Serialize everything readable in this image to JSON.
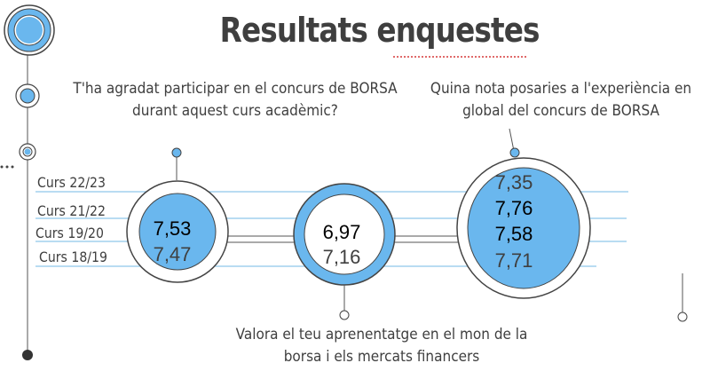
{
  "slide": {
    "title": "Resultats enquestes",
    "questions": {
      "participation": "T'ha agradat participar en el concurs de BORSA durant aquest curs acadèmic?",
      "experience": "Quina nota posaries a l'experiència en global del concurs de BORSA",
      "learning": "Valora el teu aprenentatge en el mon de la borsa i els mercats financers"
    },
    "rows": [
      "Curs 22/23",
      "Curs 21/22",
      "Curs 19/20",
      "Curs 18/19"
    ],
    "participation_values": [
      "7,53",
      "7,47"
    ],
    "learning_values": [
      "6,97",
      "7,16"
    ],
    "experience_values": [
      "7,35",
      "7,76",
      "7,58",
      "7,71"
    ]
  },
  "colors": {
    "accent_blue": "#6ab7ee",
    "line_blue": "#8fc6ea",
    "title_gray": "#3f3f3f",
    "spellcheck_red": "#e06a6a"
  }
}
